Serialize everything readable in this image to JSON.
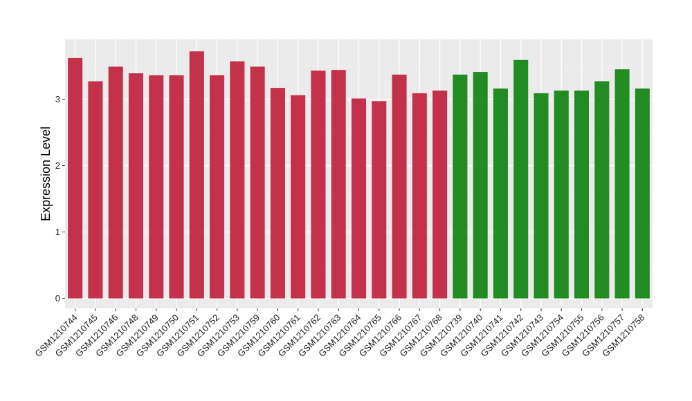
{
  "chart_data": {
    "type": "bar",
    "title": "",
    "xlabel": "",
    "ylabel": "Expression Level",
    "ylim": [
      -0.15,
      3.9
    ],
    "yticks": [
      0,
      1,
      2,
      3
    ],
    "grid": true,
    "background": "#ebebeb",
    "categories": [
      "GSM1210744",
      "GSM1210745",
      "GSM1210746",
      "GSM1210748",
      "GSM1210749",
      "GSM1210750",
      "GSM1210751",
      "GSM1210752",
      "GSM1210753",
      "GSM1210759",
      "GSM1210760",
      "GSM1210761",
      "GSM1210762",
      "GSM1210763",
      "GSM1210764",
      "GSM1210765",
      "GSM1210766",
      "GSM1210767",
      "GSM1210768",
      "GSM1210739",
      "GSM1210740",
      "GSM1210741",
      "GSM1210742",
      "GSM1210743",
      "GSM1210754",
      "GSM1210755",
      "GSM1210756",
      "GSM1210757",
      "GSM1210758"
    ],
    "values": [
      3.62,
      3.27,
      3.49,
      3.39,
      3.36,
      3.36,
      3.72,
      3.36,
      3.57,
      3.49,
      3.17,
      3.06,
      3.43,
      3.44,
      3.01,
      2.97,
      3.37,
      3.09,
      3.13,
      3.37,
      3.41,
      3.16,
      3.59,
      3.09,
      3.13,
      3.13,
      3.27,
      3.45,
      3.16
    ],
    "bar_colors": [
      "#c4314b",
      "#c4314b",
      "#c4314b",
      "#c4314b",
      "#c4314b",
      "#c4314b",
      "#c4314b",
      "#c4314b",
      "#c4314b",
      "#c4314b",
      "#c4314b",
      "#c4314b",
      "#c4314b",
      "#c4314b",
      "#c4314b",
      "#c4314b",
      "#c4314b",
      "#c4314b",
      "#c4314b",
      "#228b22",
      "#228b22",
      "#228b22",
      "#228b22",
      "#228b22",
      "#228b22",
      "#228b22",
      "#228b22",
      "#228b22",
      "#228b22"
    ]
  }
}
